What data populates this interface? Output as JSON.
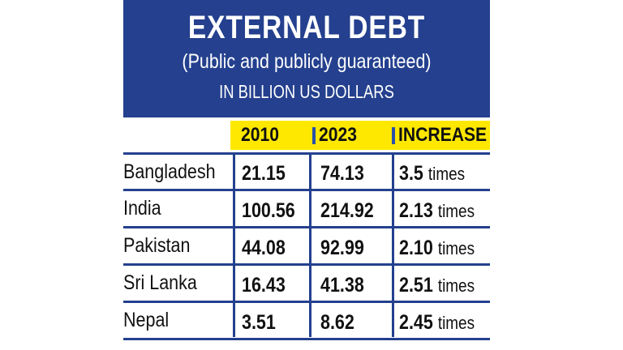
{
  "chart_data": {
    "type": "table",
    "title": "EXTERNAL DEBT",
    "subtitle": "(Public and publicly guaranteed)",
    "units": "IN BILLION US DOLLARS",
    "columns": [
      "2010",
      "2023",
      "INCREASE"
    ],
    "rows": [
      {
        "country": "Bangladesh",
        "v2010": "21.15",
        "v2023": "74.13",
        "increase": "3.5",
        "unit": "times"
      },
      {
        "country": "India",
        "v2010": "100.56",
        "v2023": "214.92",
        "increase": "2.13",
        "unit": "times"
      },
      {
        "country": "Pakistan",
        "v2010": "44.08",
        "v2023": "92.99",
        "increase": "2.10",
        "unit": "times"
      },
      {
        "country": "Sri Lanka",
        "v2010": "16.43",
        "v2023": "41.38",
        "increase": "2.51",
        "unit": "times"
      },
      {
        "country": "Nepal",
        "v2010": "3.51",
        "v2023": "8.62",
        "increase": "2.45",
        "unit": "times"
      }
    ]
  },
  "colors": {
    "header_bg": "#24408e",
    "header_highlight": "#ffe800",
    "accent_bar": "#2a52a8",
    "text": "#111111"
  }
}
